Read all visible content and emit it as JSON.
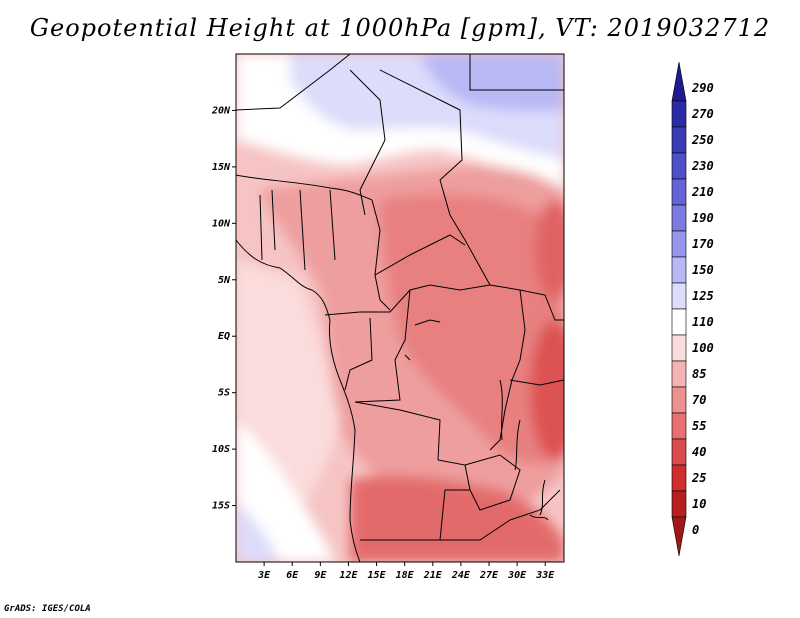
{
  "title": "Geopotential Height at 1000hPa [gpm], VT: 2019032712",
  "credit": "GrADS: IGES/COLA",
  "map": {
    "lat_range": [
      -20,
      25
    ],
    "lon_range": [
      0,
      35
    ],
    "lat_labels": [
      "20N",
      "15N",
      "10N",
      "5N",
      "EQ",
      "5S",
      "10S",
      "15S"
    ],
    "lat_values": [
      20,
      15,
      10,
      5,
      0,
      -5,
      -10,
      -15
    ],
    "lon_labels": [
      "3E",
      "6E",
      "9E",
      "12E",
      "15E",
      "18E",
      "21E",
      "24E",
      "27E",
      "30E",
      "33E"
    ],
    "lon_values": [
      3,
      6,
      9,
      12,
      15,
      18,
      21,
      24,
      27,
      30,
      33
    ]
  },
  "colorbar": {
    "labels": [
      "290",
      "270",
      "250",
      "230",
      "210",
      "190",
      "170",
      "150",
      "125",
      "110",
      "100",
      "85",
      "70",
      "55",
      "40",
      "25",
      "10",
      "0"
    ],
    "colors": [
      "#1f1a8f",
      "#2b2ba6",
      "#3b3bb8",
      "#4f4fc8",
      "#6464d6",
      "#7b7be2",
      "#9595ec",
      "#b8b8f5",
      "#dcdcfb",
      "#ffffff",
      "#fbdcdc",
      "#f5b3b3",
      "#ee9090",
      "#e87070",
      "#dd4c4c",
      "#d02e2e",
      "#b82020",
      "#a01818"
    ]
  },
  "colors": {
    "background": "#ffffff",
    "text": "#000000"
  }
}
